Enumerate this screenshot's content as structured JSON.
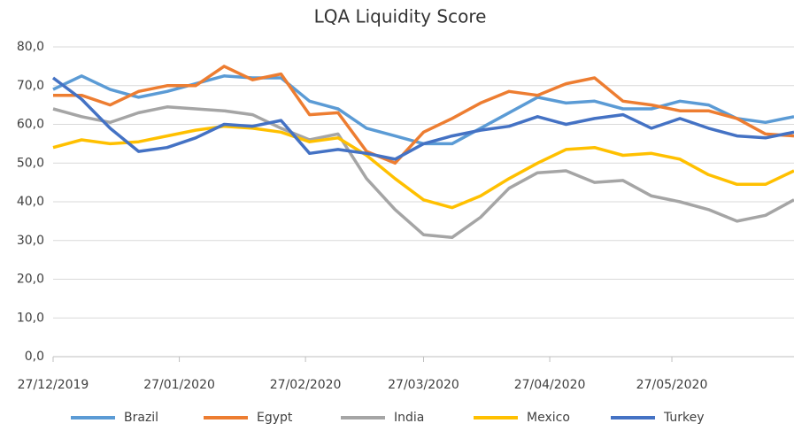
{
  "chart_data": {
    "type": "line",
    "title": "LQA Liquidity Score",
    "x": [
      "27/12/2019",
      "03/01/2020",
      "10/01/2020",
      "17/01/2020",
      "24/01/2020",
      "31/01/2020",
      "07/02/2020",
      "14/02/2020",
      "21/02/2020",
      "28/02/2020",
      "06/03/2020",
      "13/03/2020",
      "20/03/2020",
      "27/03/2020",
      "03/04/2020",
      "10/04/2020",
      "17/04/2020",
      "24/04/2020",
      "01/05/2020",
      "08/05/2020",
      "15/05/2020",
      "22/05/2020",
      "29/05/2020",
      "05/06/2020",
      "12/06/2020",
      "19/06/2020",
      "26/06/2020"
    ],
    "series": [
      {
        "name": "Brazil",
        "color": "#5b9bd5",
        "values": [
          69,
          72.5,
          69,
          67,
          68.5,
          70.5,
          72.5,
          72,
          72,
          66,
          64,
          59,
          57,
          55,
          55,
          59,
          63,
          67,
          65.5,
          66,
          64,
          64,
          66,
          65,
          61.5,
          60.5,
          62
        ]
      },
      {
        "name": "Egypt",
        "color": "#ed7d31",
        "values": [
          67.5,
          67.5,
          65,
          68.5,
          70,
          70,
          75,
          71.5,
          73,
          62.5,
          63,
          53,
          50,
          58,
          61.5,
          65.5,
          68.5,
          67.5,
          70.5,
          72,
          66,
          65,
          63.5,
          63.5,
          61.5,
          57.5,
          57
        ]
      },
      {
        "name": "India",
        "color": "#a5a5a5",
        "values": [
          64,
          62,
          60.5,
          63,
          64.5,
          64,
          63.5,
          62.5,
          59,
          56,
          57.5,
          46,
          38,
          31.5,
          30.8,
          36,
          43.5,
          47.5,
          48,
          45,
          45.5,
          41.5,
          40,
          38,
          35,
          36.5,
          40.5
        ]
      },
      {
        "name": "Mexico",
        "color": "#ffc000",
        "values": [
          54,
          56,
          55,
          55.5,
          57,
          58.5,
          59.5,
          59,
          58,
          55.5,
          56.5,
          52,
          46,
          40.5,
          38.5,
          41.5,
          46,
          50,
          53.5,
          54,
          52,
          52.5,
          51,
          47,
          44.5,
          44.5,
          48
        ]
      },
      {
        "name": "Turkey",
        "color": "#4472c4",
        "values": [
          72,
          66.5,
          59,
          53,
          54,
          56.5,
          60,
          59.5,
          61,
          52.5,
          53.5,
          52.5,
          51,
          55,
          57,
          58.5,
          59.5,
          62,
          60,
          61.5,
          62.5,
          59,
          61.5,
          59,
          57,
          56.5,
          58
        ]
      }
    ],
    "xlim": [
      "27/12/2019",
      "26/06/2020"
    ],
    "xticks": [
      "27/12/2019",
      "27/01/2020",
      "27/02/2020",
      "27/03/2020",
      "27/04/2020",
      "27/05/2020"
    ],
    "ylim": [
      0,
      80
    ],
    "yticks": [
      {
        "value": 0,
        "label": "0,0"
      },
      {
        "value": 10,
        "label": "10,0"
      },
      {
        "value": 20,
        "label": "20,0"
      },
      {
        "value": 30,
        "label": "30,0"
      },
      {
        "value": 40,
        "label": "40,0"
      },
      {
        "value": 50,
        "label": "50,0"
      },
      {
        "value": 60,
        "label": "60,0"
      },
      {
        "value": 70,
        "label": "70,0"
      },
      {
        "value": 80,
        "label": "80,0"
      }
    ],
    "grid": true,
    "legend": "bottom"
  }
}
